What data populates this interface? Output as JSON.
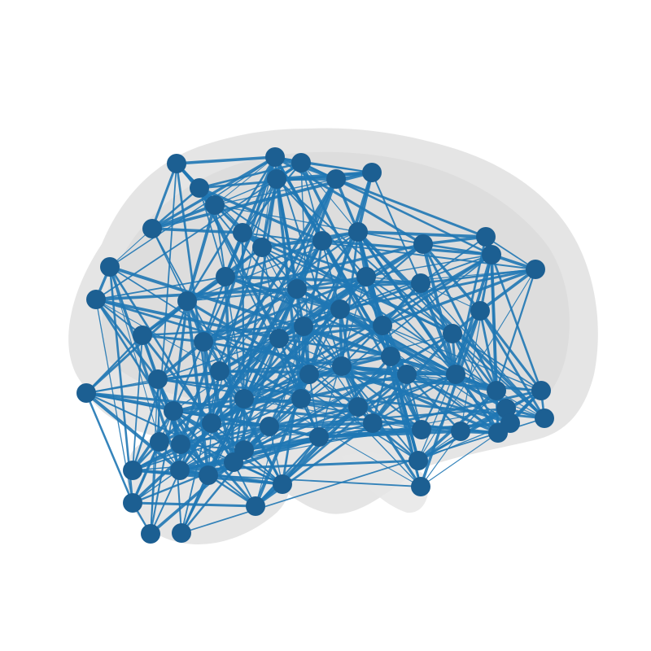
{
  "figure": {
    "kind": "brain-connectome-sagittal",
    "view": "lateral-left",
    "colors": {
      "background": "#ffffff",
      "brain_outer": "#e6e6e6",
      "brain_inner": "#d6d6d6",
      "edge": "#1f77b4",
      "node": "#1c5f92"
    },
    "node_count": 70,
    "edge_style": "dense straight lines",
    "node_style": "filled circles"
  }
}
